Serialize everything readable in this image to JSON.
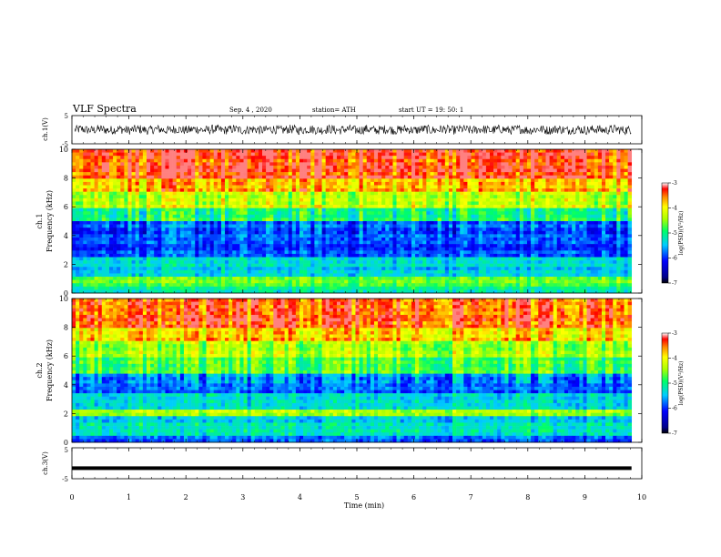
{
  "header": {
    "title": "VLF Spectra",
    "date": "Sep. 4 , 2020",
    "station": "station= ATH",
    "start": "start UT = 19: 50: 1"
  },
  "chart_data": [
    {
      "type": "line",
      "panel": "ch1-waveform",
      "ylabel": "ch.1(V)",
      "ylim": [
        -5,
        5
      ],
      "y_ticks": [
        "5",
        "-5"
      ],
      "x_range_min": [
        0,
        9.82
      ],
      "description_level": "noisy waveform centered near 0 V, amplitude about ±2 V"
    },
    {
      "type": "heatmap",
      "panel": "ch1-spectrogram",
      "ylabel": "ch.1\nFrequency (kHz)",
      "ylabel_lines": [
        "ch.1",
        "Frequency (kHz)"
      ],
      "ylim": [
        0,
        10
      ],
      "y_ticks": [
        "0",
        "2",
        "4",
        "6",
        "8",
        "10"
      ],
      "colorbar": {
        "label": "log(PSD)(V²/Hz)",
        "range": [
          -7,
          -3
        ],
        "ticks": [
          "-3",
          "-4",
          "-5",
          "-6",
          "-7"
        ]
      }
    },
    {
      "type": "heatmap",
      "panel": "ch2-spectrogram",
      "ylabel_lines": [
        "ch.2",
        "Frequency (kHz)"
      ],
      "ylim": [
        0,
        10
      ],
      "y_ticks": [
        "0",
        "2",
        "4",
        "6",
        "8",
        "10"
      ],
      "colorbar": {
        "label": "log(PSD)(V²/Hz)",
        "range": [
          -7,
          -3
        ],
        "ticks": [
          "-3",
          "-4",
          "-5",
          "-6",
          "-7"
        ]
      }
    },
    {
      "type": "line",
      "panel": "ch3-waveform",
      "ylabel": "ch.3(V)",
      "ylim": [
        -5,
        5
      ],
      "y_ticks": [
        "5",
        "-5"
      ],
      "level": -1.6
    }
  ],
  "xaxis": {
    "label": "Time (min)",
    "range": [
      0,
      10
    ],
    "ticks": [
      "0",
      "1",
      "2",
      "3",
      "4",
      "5",
      "6",
      "7",
      "8",
      "9",
      "10"
    ],
    "data_end": 9.82
  },
  "colors": {
    "low": "#00008b",
    "mid": "#00ff00",
    "high": "#ff0000"
  }
}
